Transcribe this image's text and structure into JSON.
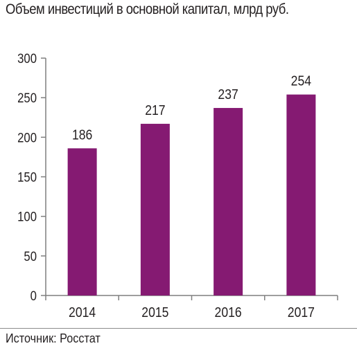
{
  "title": "Объем инвестиций в основной капитал, млрд руб.",
  "source": "Источник: Росстат",
  "colors": {
    "bar": "#851a72",
    "axis": "#7f7f7f",
    "text": "#231f20"
  },
  "chart_data": {
    "type": "bar",
    "title": "Объем инвестиций в основной капитал, млрд руб.",
    "xlabel": "",
    "ylabel": "",
    "categories": [
      "2014",
      "2015",
      "2016",
      "2017"
    ],
    "values": [
      186,
      217,
      237,
      254
    ],
    "ylim": [
      0,
      300
    ],
    "yticks": [
      0,
      50,
      100,
      150,
      200,
      250,
      300
    ],
    "data_labels": true,
    "grid": false,
    "legend": "none"
  }
}
